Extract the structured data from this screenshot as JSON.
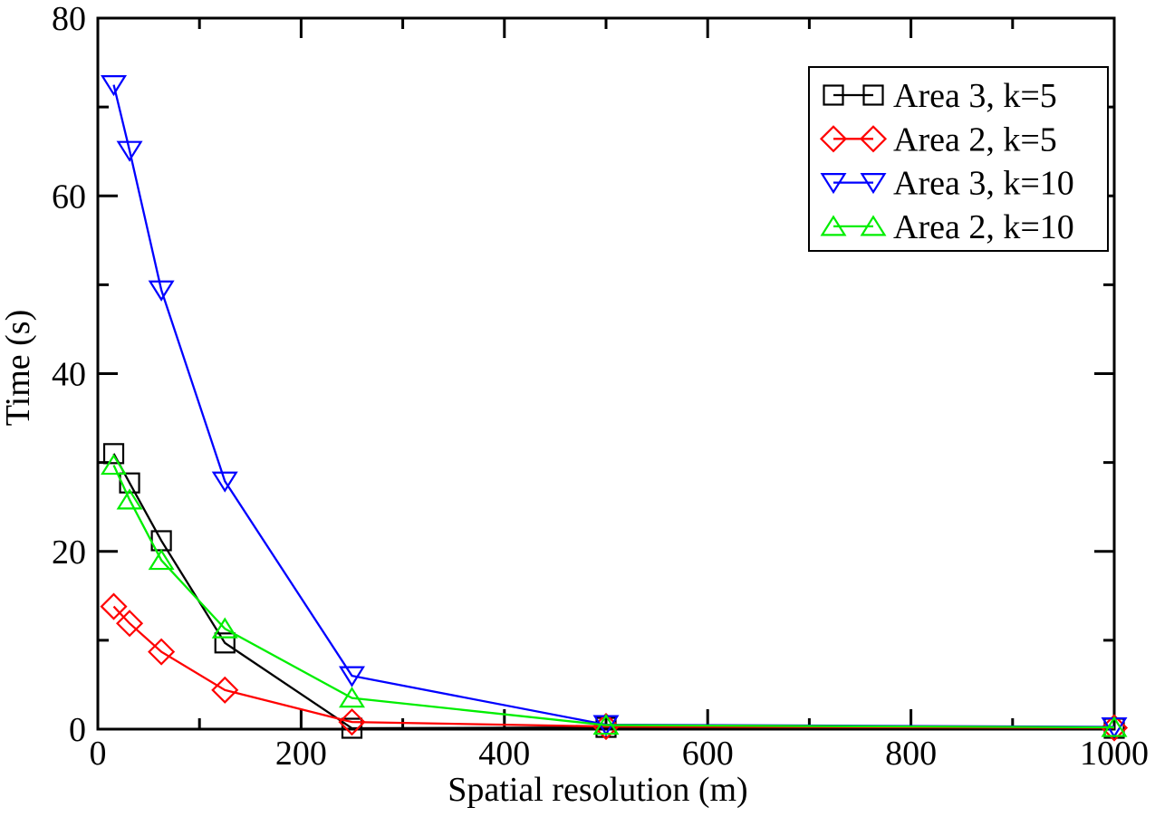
{
  "chart_data": {
    "type": "line",
    "title": "",
    "xlabel": "Spatial resolution (m)",
    "ylabel": "Time (s)",
    "xlim": [
      0,
      1000
    ],
    "ylim": [
      0,
      80
    ],
    "x_major_ticks": [
      0,
      200,
      400,
      600,
      800,
      1000
    ],
    "x_minor_ticks": [
      100,
      300,
      500,
      700,
      900
    ],
    "y_major_ticks": [
      0,
      20,
      40,
      60,
      80
    ],
    "y_minor_ticks": [
      10,
      30,
      50,
      70
    ],
    "grid": false,
    "background_color": "#ffffff",
    "axis_color": "#000000",
    "legend_position": "top-right",
    "x": [
      15.625,
      31.25,
      62.5,
      125,
      250,
      500,
      1000
    ],
    "series": [
      {
        "name": "Area 3, k=5",
        "color": "#000000",
        "marker": "square",
        "values": [
          31.0,
          27.7,
          21.2,
          9.7,
          0.1,
          0.2,
          0.1
        ]
      },
      {
        "name": "Area 2, k=5",
        "color": "#ff0000",
        "marker": "diamond",
        "values": [
          13.8,
          11.9,
          8.7,
          4.4,
          0.8,
          0.3,
          0.15
        ]
      },
      {
        "name": "Area 3, k=10",
        "color": "#0000ff",
        "marker": "triangle-down",
        "values": [
          72.5,
          65.1,
          49.4,
          27.9,
          6.0,
          0.5,
          0.25
        ]
      },
      {
        "name": "Area 2, k=10",
        "color": "#00ee00",
        "marker": "triangle-up",
        "values": [
          29.7,
          25.8,
          19.0,
          11.3,
          3.5,
          0.45,
          0.2
        ]
      }
    ]
  }
}
